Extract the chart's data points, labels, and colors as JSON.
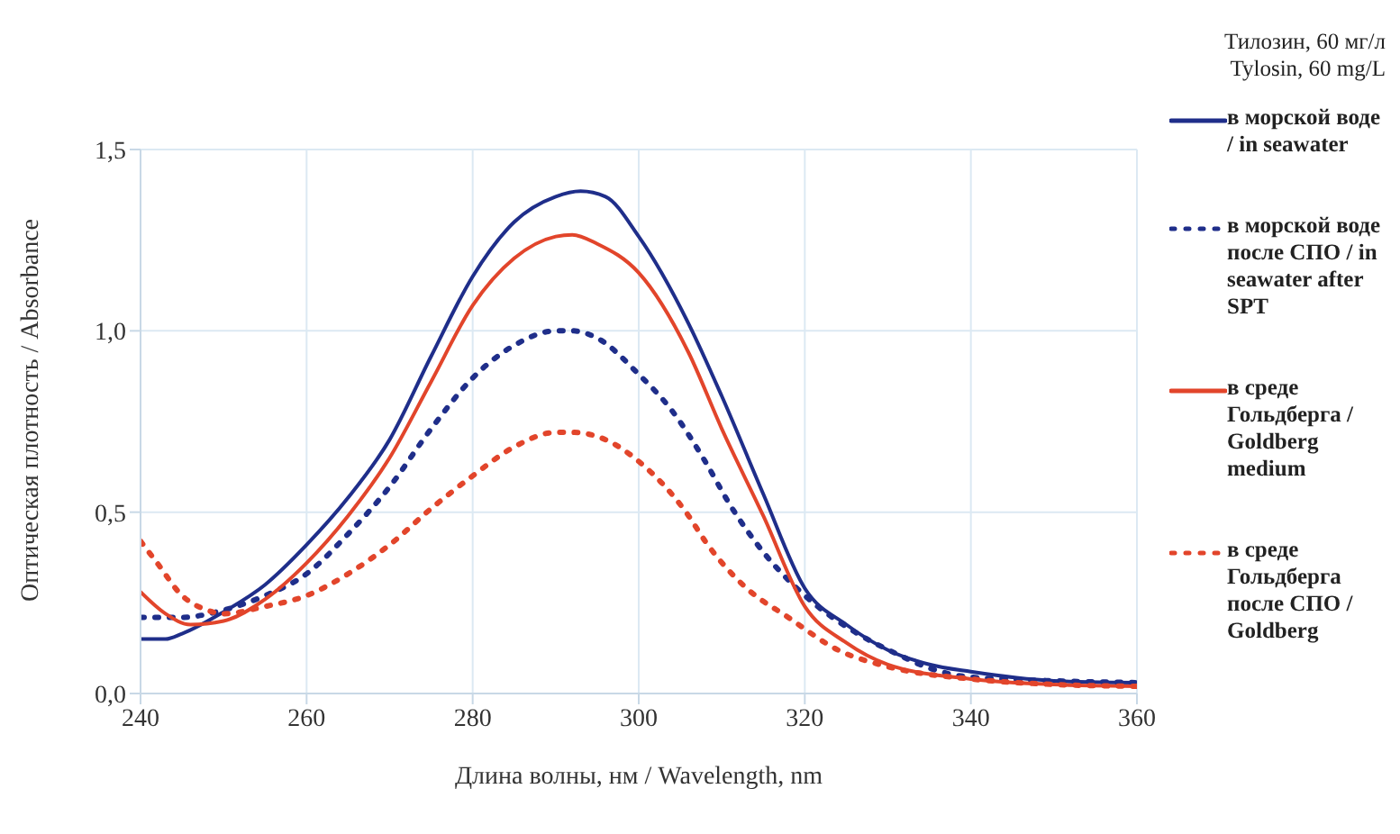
{
  "chart_data": {
    "type": "line",
    "xlabel": "Длина волны, нм / Wavelength, nm",
    "ylabel": "Оптическая плотность / Absorbance",
    "legend_title": "Тилозин, 60 мг/л\nTylosin, 60 mg/L",
    "legend": "right",
    "grid": true,
    "marker": "none",
    "xlim": [
      240,
      360
    ],
    "xticks": [
      240,
      260,
      280,
      300,
      320,
      340,
      360
    ],
    "ylim": [
      0,
      1.5
    ],
    "yticks": [
      {
        "value": 0,
        "label": "0,0"
      },
      {
        "value": 0.5,
        "label": "0,5"
      },
      {
        "value": 1,
        "label": "1,0"
      },
      {
        "value": 1.5,
        "label": "1,5"
      }
    ],
    "series": [
      {
        "name": "в морской воде / in seawater",
        "color": "#1f2e8a",
        "line_style": "solid",
        "x": [
          240,
          243,
          245,
          250,
          255,
          260,
          265,
          270,
          275,
          280,
          285,
          290,
          293,
          296,
          300,
          306,
          310,
          315,
          320,
          325,
          330,
          335,
          340,
          350,
          360
        ],
        "values": [
          0.15,
          0.15,
          0.165,
          0.225,
          0.3,
          0.41,
          0.54,
          0.7,
          0.93,
          1.15,
          1.3,
          1.37,
          1.385,
          1.37,
          1.26,
          1.02,
          0.82,
          0.55,
          0.29,
          0.19,
          0.12,
          0.08,
          0.06,
          0.035,
          0.03
        ]
      },
      {
        "name": "в морской воде после СПО / in seawater after SPT",
        "color": "#1f2e8a",
        "line_style": "dotted",
        "x": [
          240,
          245,
          250,
          255,
          260,
          265,
          270,
          275,
          280,
          285,
          290,
          292,
          295,
          300,
          304,
          308,
          311,
          315,
          320,
          326,
          331,
          335,
          340,
          350,
          360
        ],
        "values": [
          0.21,
          0.21,
          0.23,
          0.27,
          0.33,
          0.44,
          0.57,
          0.73,
          0.87,
          0.96,
          1.0,
          1.0,
          0.98,
          0.88,
          0.78,
          0.64,
          0.52,
          0.39,
          0.27,
          0.17,
          0.11,
          0.07,
          0.045,
          0.035,
          0.03
        ]
      },
      {
        "name": "в среде Гольдберга / Goldberg medium",
        "color": "#e2452b",
        "line_style": "solid",
        "x": [
          240,
          243,
          246,
          250,
          255,
          260,
          265,
          270,
          275,
          280,
          285,
          290,
          292,
          295,
          300,
          306,
          310,
          315,
          320,
          325,
          330,
          340,
          350,
          360
        ],
        "values": [
          0.28,
          0.22,
          0.19,
          0.2,
          0.26,
          0.36,
          0.49,
          0.65,
          0.86,
          1.07,
          1.2,
          1.26,
          1.265,
          1.24,
          1.16,
          0.94,
          0.73,
          0.49,
          0.24,
          0.14,
          0.08,
          0.04,
          0.025,
          0.02
        ]
      },
      {
        "name": "в среде Гольдберга после СПО / Goldberg",
        "color": "#e2452b",
        "line_style": "dotted",
        "x": [
          240,
          242,
          245,
          248,
          250,
          255,
          260,
          265,
          270,
          275,
          280,
          285,
          290,
          292,
          296,
          300,
          306,
          308,
          313,
          318,
          324,
          330,
          340,
          350,
          360
        ],
        "values": [
          0.42,
          0.36,
          0.27,
          0.23,
          0.22,
          0.24,
          0.27,
          0.33,
          0.41,
          0.51,
          0.6,
          0.68,
          0.72,
          0.72,
          0.7,
          0.64,
          0.49,
          0.42,
          0.29,
          0.21,
          0.12,
          0.074,
          0.04,
          0.025,
          0.02
        ]
      }
    ]
  }
}
